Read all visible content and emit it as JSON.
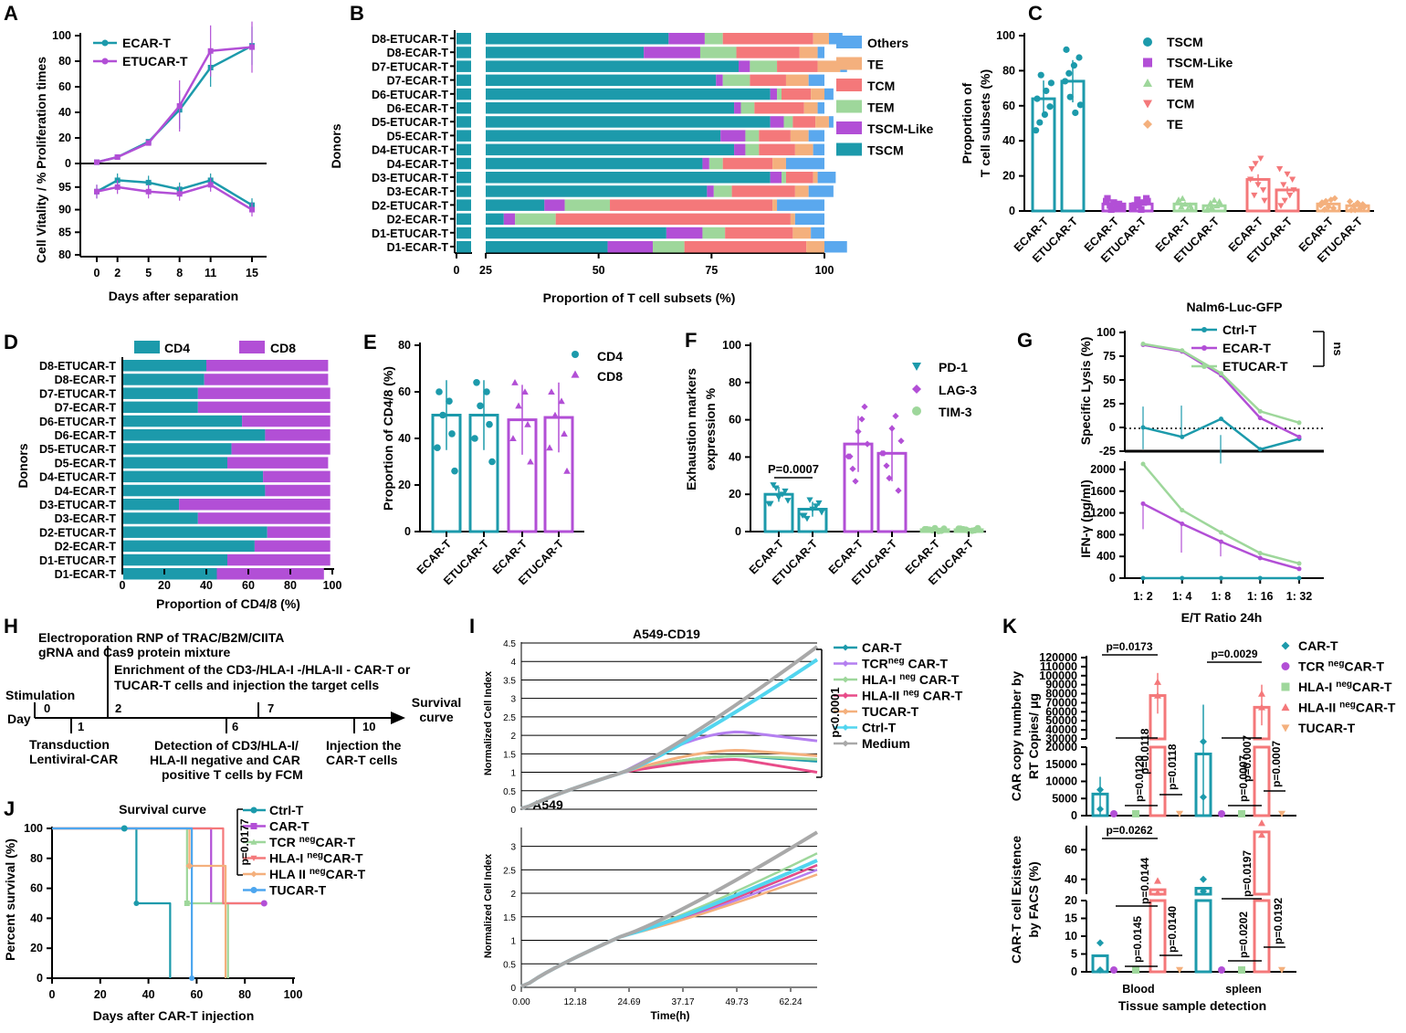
{
  "colors": {
    "teal": "#1c9aab",
    "purple": "#b24fd6",
    "lgreen": "#9ed79b",
    "salmon": "#f4787a",
    "orange": "#f4b07d",
    "blue": "#4da6ef",
    "gray": "#a9a9a9",
    "cyan": "#52d5ef",
    "pink": "#e84c89",
    "tsubOthers": "#5aa8ee"
  },
  "chart_data": [
    {
      "panel": "A",
      "type": "line",
      "xlabel": "Days after separation",
      "ylabel": "Cell Vitality / %  Proliferation times",
      "x": [
        0,
        2,
        5,
        8,
        11,
        15
      ],
      "xticks": [
        "0",
        "2",
        "5",
        "8",
        "11",
        "15"
      ],
      "top": {
        "ylim": [
          0,
          100
        ],
        "yticks": [
          "0",
          "20",
          "40",
          "60",
          "80",
          "100"
        ],
        "series": [
          {
            "name": "ECAR-T",
            "color": "#1c9aab",
            "values": [
              1,
              5,
              17,
              42,
              75,
              92
            ]
          },
          {
            "name": "ETUCAR-T",
            "color": "#b24fd6",
            "values": [
              1,
              5,
              16,
              45,
              88,
              91
            ]
          }
        ]
      },
      "bottom": {
        "ylim": [
          80,
          98
        ],
        "yticks": [
          "80",
          "85",
          "90",
          "95"
        ],
        "series": [
          {
            "name": "ECAR-T",
            "color": "#1c9aab",
            "values": [
              94,
              96.5,
              96,
              94.5,
              96.5,
              91
            ]
          },
          {
            "name": "ETUCAR-T",
            "color": "#b24fd6",
            "values": [
              94,
              95,
              94,
              93.5,
              95.5,
              90
            ]
          }
        ]
      }
    },
    {
      "panel": "B",
      "type": "bar",
      "xlabel": "Proportion of T cell subsets (%)",
      "ylabel": "Donors",
      "xticks": [
        "0",
        "25",
        "50",
        "75",
        "100"
      ],
      "categories": [
        "D8-ETUCAR-T",
        "D8-ECAR-T",
        "D7-ETUCAR-T",
        "D7-ECAR-T",
        "D6-ETUCAR-T",
        "D6-ECAR-T",
        "D5-ETUCAR-T",
        "D5-ECAR-T",
        "D4-ETUCAR-T",
        "D4-ECAR-T",
        "D3-ETUCAR-T",
        "D3-ECAR-T",
        "D2-ETUCAR-T",
        "D2-ECAR-T",
        "D1-ETUCAR-T",
        "D1-ECAR-T"
      ],
      "legend": [
        "Others",
        "TE",
        "TCM",
        "TEM",
        "TSCM-Like",
        "TSCM"
      ],
      "series": [
        {
          "name": "TSCM",
          "color": "#1c9aab",
          "values": [
            65.5,
            60,
            81,
            76,
            88,
            80,
            88,
            77,
            80,
            73,
            88,
            74,
            38,
            29,
            65,
            52
          ]
        },
        {
          "name": "TSCM-Like",
          "color": "#b24fd6",
          "values": [
            8,
            12.5,
            2.5,
            1.5,
            1.5,
            1.5,
            3,
            5.5,
            2.5,
            1.5,
            2.5,
            1.5,
            4.5,
            2.5,
            8,
            10
          ]
        },
        {
          "name": "TEM",
          "color": "#9ed79b",
          "values": [
            4,
            8,
            6,
            6,
            1,
            3,
            2,
            3,
            3,
            3,
            1,
            4,
            10,
            9,
            5,
            7
          ]
        },
        {
          "name": "TCM",
          "color": "#f4787a",
          "values": [
            20,
            14,
            9,
            8,
            6.5,
            11,
            5,
            7,
            8,
            11,
            6,
            14,
            36,
            52,
            15,
            27
          ]
        },
        {
          "name": "TE",
          "color": "#f4b07d",
          "values": [
            3.5,
            4,
            5,
            5,
            3,
            3,
            3,
            4,
            4,
            3,
            1,
            3,
            1,
            1,
            4,
            4
          ]
        },
        {
          "name": "Others",
          "color": "#5aa8ee",
          "values": [
            3,
            1.5,
            1.5,
            3.5,
            2,
            1.5,
            1,
            3.5,
            2.5,
            8.5,
            4,
            5.5,
            10.5,
            6.5,
            3,
            5
          ]
        }
      ]
    },
    {
      "panel": "C",
      "type": "bar",
      "ylabel": "Proportion of T cell subsets (%)",
      "ylim": [
        0,
        100
      ],
      "yticks": [
        "0",
        "20",
        "40",
        "60",
        "80",
        "100"
      ],
      "categories": [
        "ECAR-T",
        "ETUCAR-T",
        "ECAR-T",
        "ETUCAR-T",
        "ECAR-T",
        "ETUCAR-T",
        "ECAR-T",
        "ETUCAR-T",
        "ECAR-T",
        "ETUCAR-T"
      ],
      "legend": [
        "TSCM",
        "TSCM-Like",
        "TEM",
        "TCM",
        "TE"
      ],
      "values": [
        64,
        74,
        4,
        4,
        4,
        3,
        18,
        12,
        4,
        3
      ]
    },
    {
      "panel": "D",
      "type": "bar",
      "xlabel": "Proportion of CD4/8 (%)",
      "ylabel": "Donors",
      "xticks": [
        "0",
        "20",
        "40",
        "60",
        "80",
        "100"
      ],
      "legend": [
        "CD4",
        "CD8"
      ],
      "categories": [
        "D8-ETUCAR-T",
        "D8-ECAR-T",
        "D7-ETUCAR-T",
        "D7-ECAR-T",
        "D6-ETUCAR-T",
        "D6-ECAR-T",
        "D5-ETUCAR-T",
        "D5-ECAR-T",
        "D4-ETUCAR-T",
        "D4-ECAR-T",
        "D3-ETUCAR-T",
        "D3-ECAR-T",
        "D2-ETUCAR-T",
        "D2-ECAR-T",
        "D1-ETUCAR-T",
        "D1-ECAR-T"
      ],
      "series": [
        {
          "name": "CD4",
          "color": "#1c9aab",
          "values": [
            40,
            39,
            36,
            36,
            57,
            68,
            52,
            50,
            67,
            68,
            27,
            36,
            69,
            63,
            50,
            45
          ]
        },
        {
          "name": "CD8",
          "color": "#b24fd6",
          "values": [
            58,
            59,
            63,
            63,
            42,
            31,
            47,
            48,
            32,
            31,
            72,
            63,
            30,
            36,
            49,
            51
          ]
        }
      ]
    },
    {
      "panel": "E",
      "type": "bar",
      "ylabel": "Proportion of CD4/8 (%)",
      "ylim": [
        0,
        80
      ],
      "yticks": [
        "0",
        "20",
        "40",
        "60",
        "80"
      ],
      "categories": [
        "ECAR-T",
        "ETUCAR-T",
        "ECAR-T",
        "ETUCAR-T"
      ],
      "legend": [
        "CD4",
        "CD8"
      ],
      "values": [
        50,
        50,
        48,
        49
      ]
    },
    {
      "panel": "F",
      "type": "bar",
      "ylabel": "Exhaustion markers expression %",
      "ylim": [
        0,
        100
      ],
      "yticks": [
        "0",
        "20",
        "40",
        "60",
        "80",
        "100"
      ],
      "categories": [
        "ECAR-T",
        "ETUCAR-T",
        "ECAR-T",
        "ETUCAR-T",
        "ECAR-T",
        "ETUCAR-T"
      ],
      "legend": [
        "PD-1",
        "LAG-3",
        "TIM-3"
      ],
      "values": [
        20,
        12,
        47,
        42,
        1,
        1
      ],
      "annotation": "P=0.0007"
    },
    {
      "panel": "G",
      "type": "line",
      "title": "Nalm6-Luc-GFP",
      "xlabel": "E/T Ratio  24h",
      "xticks": [
        "1: 2",
        "1: 4",
        "1: 8",
        "1: 16",
        "1: 32"
      ],
      "legend": [
        "Ctrl-T",
        "ECAR-T",
        "ETUCAR-T"
      ],
      "annotation": "ns",
      "top": {
        "ylabel": "Specific Lysis (%)",
        "ylim": [
          -25,
          100
        ],
        "yticks": [
          "-25",
          "0",
          "25",
          "50",
          "75",
          "100"
        ],
        "series": [
          {
            "name": "Ctrl-T",
            "color": "#1c9aab",
            "values": [
              0,
              -10,
              9,
              -23,
              -12
            ]
          },
          {
            "name": "ECAR-T",
            "color": "#b24fd6",
            "values": [
              87,
              80,
              55,
              10,
              -10
            ]
          },
          {
            "name": "ETUCAR-T",
            "color": "#9ed79b",
            "values": [
              88,
              81,
              57,
              17,
              5
            ]
          }
        ]
      },
      "bottom": {
        "ylabel": "IFN-γ (pg/ml)",
        "ylim": [
          0,
          2100
        ],
        "yticks": [
          "0",
          "400",
          "800",
          "1200",
          "1600",
          "2000"
        ],
        "series": [
          {
            "name": "Ctrl-T",
            "color": "#1c9aab",
            "values": [
              0,
              0,
              0,
              0,
              0
            ]
          },
          {
            "name": "ECAR-T",
            "color": "#b24fd6",
            "values": [
              1370,
              1000,
              670,
              370,
              170
            ]
          },
          {
            "name": "ETUCAR-T",
            "color": "#9ed79b",
            "values": [
              2100,
              1250,
              840,
              460,
              270
            ]
          }
        ]
      }
    },
    {
      "panel": "H",
      "type": "timeline",
      "axis_label": "Day",
      "end_label": "Survival curve",
      "events": [
        {
          "day": "0",
          "text": "Stimulation"
        },
        {
          "day": "1",
          "text": "Transduction Lentiviral-CAR"
        },
        {
          "day": "2",
          "text": "Electroporation RNP of TRAC/B2M/CIITA gRNA and Cas9 protein mixture"
        },
        {
          "day": "6",
          "text": "Detection of CD3/HLA-I/ HLA-II negative and CAR positive T cells by FCM"
        },
        {
          "day": "7",
          "text": "Enrichment of the CD3-/HLA-I -/HLA-II - CAR-T or TUCAR-T cells and injection the target cells"
        },
        {
          "day": "10",
          "text": "Injection the CAR-T cells"
        }
      ]
    },
    {
      "panel": "I",
      "type": "line",
      "xlabel": "Time(h)",
      "ylabel": "Normalized Cell Index",
      "xticks": [
        "0.00",
        "12.18",
        "24.69",
        "37.17",
        "49.73",
        "62.24"
      ],
      "annotation": "p<0.0001",
      "top": {
        "title": "A549-CD19",
        "ylim": [
          0,
          4.5
        ],
        "yticks": [
          "0",
          "0.5",
          "1",
          "1.5",
          "2",
          "2.5",
          "3",
          "3.5",
          "4",
          "4.5"
        ],
        "series": [
          {
            "name": "CAR-T",
            "color": "#1c9aab",
            "end": 1.3
          },
          {
            "name": "TCR neg CAR-T",
            "color": "#b47ff0",
            "end": 1.85
          },
          {
            "name": "HLA-I neg CAR-T",
            "color": "#9ed79b",
            "end": 1.35
          },
          {
            "name": "HLA-II neg CAR-T",
            "color": "#e84c89",
            "end": 1.0
          },
          {
            "name": "TUCAR-T",
            "color": "#f4b07d",
            "end": 1.45
          },
          {
            "name": "Ctrl-T",
            "color": "#52d5ef",
            "end": 4.05
          },
          {
            "name": "Medium",
            "color": "#a9a9a9",
            "end": 4.4
          }
        ]
      },
      "bottom": {
        "title": "A549",
        "ylim": [
          0,
          3.4
        ],
        "yticks": [
          "0",
          "0.5",
          "1",
          "1.5",
          "2",
          "2.5",
          "3"
        ],
        "series": [
          {
            "name": "CAR-T",
            "end": 2.6
          },
          {
            "name": "TCR neg CAR-T",
            "end": 2.5
          },
          {
            "name": "HLA-I neg CAR-T",
            "end": 2.85
          },
          {
            "name": "HLA-II neg CAR-T",
            "end": 2.6
          },
          {
            "name": "TUCAR-T",
            "end": 2.4
          },
          {
            "name": "Ctrl-T",
            "end": 2.7
          },
          {
            "name": "Medium",
            "end": 3.3
          }
        ]
      }
    },
    {
      "panel": "J",
      "type": "line",
      "title": "Survival curve",
      "xlabel": "Days after CAR-T injection",
      "ylabel": "Percent survival (%)",
      "xlim": [
        0,
        100
      ],
      "ylim": [
        0,
        100
      ],
      "xticks": [
        "0",
        "20",
        "40",
        "60",
        "80",
        "100"
      ],
      "yticks": [
        "0",
        "20",
        "40",
        "60",
        "80",
        "100"
      ],
      "annotation": "p=0.0177",
      "series": [
        {
          "name": "Ctrl-T",
          "color": "#1c9aab",
          "steps": [
            [
              0,
              100
            ],
            [
              35,
              100
            ],
            [
              35,
              50
            ],
            [
              49,
              50
            ],
            [
              49,
              0
            ]
          ]
        },
        {
          "name": "CAR-T",
          "color": "#b24fd6",
          "steps": [
            [
              0,
              100
            ],
            [
              66,
              100
            ],
            [
              66,
              50
            ],
            [
              88,
              50
            ]
          ]
        },
        {
          "name": "TCR neg CAR-T",
          "color": "#9ed79b",
          "steps": [
            [
              0,
              100
            ],
            [
              56,
              100
            ],
            [
              56,
              50
            ],
            [
              73,
              50
            ],
            [
              73,
              0
            ]
          ]
        },
        {
          "name": "HLA-I neg CAR-T",
          "color": "#f4787a",
          "steps": [
            [
              0,
              100
            ],
            [
              71,
              100
            ],
            [
              71,
              50
            ],
            [
              88,
              50
            ]
          ]
        },
        {
          "name": "HLA II neg CAR-T",
          "color": "#f4b07d",
          "steps": [
            [
              0,
              100
            ],
            [
              57,
              100
            ],
            [
              57,
              75
            ],
            [
              72,
              75
            ],
            [
              72,
              0
            ]
          ]
        },
        {
          "name": "TUCAR-T",
          "color": "#4da6ef",
          "steps": [
            [
              0,
              100
            ],
            [
              58,
              100
            ],
            [
              58,
              0
            ]
          ]
        }
      ]
    },
    {
      "panel": "K",
      "type": "bar",
      "xlabel": "Tissue sample detection",
      "groups": [
        "Blood",
        "spleen"
      ],
      "legend": [
        "CAR-T",
        "TCR negCAR-T",
        "HLA-I negCAR-T",
        "HLA-II negCAR-T",
        "TUCAR-T"
      ],
      "top": {
        "ylabel": "CAR copy number by RT Copies/ μg",
        "yticks_upper": [
          "30000",
          "40000",
          "50000",
          "60000",
          "70000",
          "80000",
          "90000",
          "100000",
          "110000",
          "120000"
        ],
        "yticks_lower": [
          "0",
          "5000",
          "10000",
          "15000",
          "20000"
        ],
        "values": {
          "Blood": [
            6300,
            0,
            0,
            78000,
            0
          ],
          "spleen": [
            18000,
            0,
            0,
            65000,
            0
          ]
        },
        "pvalues": [
          "p=0.0173",
          "p=0.0118",
          "p=0.0120",
          "p=0.0118",
          "p=0.0029",
          "p=0.0007",
          "p=0.0007",
          "p=0.0007"
        ]
      },
      "bottom": {
        "ylabel": "CAR-T cell Existence by FACS (%)",
        "yticks_upper": [
          "40",
          "60"
        ],
        "yticks_lower": [
          "0",
          "5",
          "10",
          "15",
          "20"
        ],
        "values": {
          "Blood": [
            4.5,
            0,
            0,
            33,
            0
          ],
          "spleen": [
            34,
            0,
            0,
            72,
            0
          ]
        },
        "pvalues": [
          "p=0.0262",
          "p=0.0144",
          "p=0.0145",
          "p=0.0140",
          "p=0.0197",
          "p=0.0202",
          "p=0.0192"
        ]
      }
    }
  ]
}
